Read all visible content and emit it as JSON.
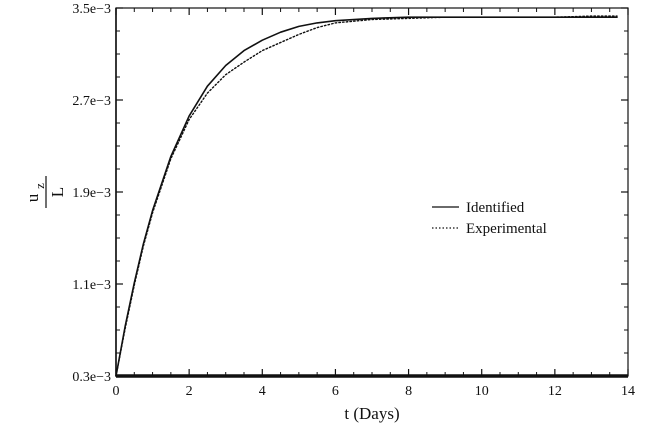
{
  "chart_data": {
    "type": "line",
    "title": "",
    "xlabel": "t (Days)",
    "ylabel": {
      "numerator": "u",
      "subscript": "z",
      "denominator": "L"
    },
    "xlim": [
      0,
      14
    ],
    "ylim": [
      0.0003,
      0.0035
    ],
    "xticks": [
      0,
      2,
      4,
      6,
      8,
      10,
      12,
      14
    ],
    "xtick_labels": [
      "0",
      "2",
      "4",
      "6",
      "8",
      "10",
      "12",
      "14"
    ],
    "yticks": [
      0.0003,
      0.0011,
      0.0019,
      0.0027,
      0.0035
    ],
    "ytick_labels": [
      "0.3e−3",
      "1.1e−3",
      "1.9e−3",
      "2.7e−3",
      "3.5e−3"
    ],
    "grid": false,
    "legend_position": "center-right",
    "series": [
      {
        "name": "Identified",
        "style": "solid",
        "x": [
          0,
          0.25,
          0.5,
          0.75,
          1,
          1.5,
          2,
          2.5,
          3,
          3.5,
          4,
          4.5,
          5,
          5.5,
          6,
          7,
          8,
          9,
          10,
          11,
          12,
          13,
          13.7
        ],
        "y": [
          0.0003,
          0.00073,
          0.00111,
          0.00145,
          0.00174,
          0.00221,
          0.00256,
          0.00282,
          0.003,
          0.00313,
          0.00322,
          0.00329,
          0.00334,
          0.00337,
          0.00339,
          0.00341,
          0.00342,
          0.00342,
          0.00342,
          0.00342,
          0.00342,
          0.00342,
          0.00342
        ]
      },
      {
        "name": "Experimental",
        "style": "dotted",
        "x": [
          0,
          0.25,
          0.5,
          0.75,
          1,
          1.5,
          2,
          2.5,
          3,
          3.5,
          4,
          4.5,
          5,
          5.5,
          6,
          7,
          8,
          9,
          10,
          11,
          12,
          13,
          13.7
        ],
        "y": [
          0.0003,
          0.00071,
          0.00109,
          0.00143,
          0.00172,
          0.00219,
          0.00253,
          0.00276,
          0.00292,
          0.00303,
          0.00313,
          0.0032,
          0.00327,
          0.00333,
          0.00337,
          0.0034,
          0.00341,
          0.00342,
          0.00342,
          0.00342,
          0.00342,
          0.00343,
          0.00343
        ]
      }
    ]
  }
}
